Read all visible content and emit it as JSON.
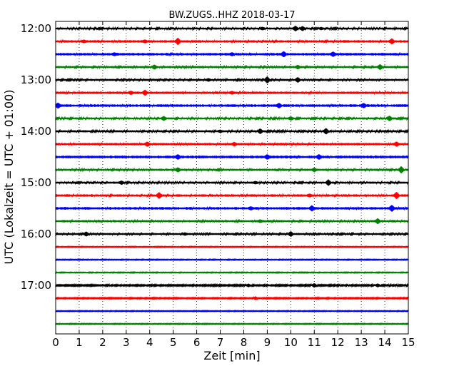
{
  "chart_data": {
    "type": "line",
    "title": "BW.ZUGS..HHZ 2018-03-17",
    "xlabel": "Zeit  [min]",
    "ylabel": "UTC (Lokalzeit = UTC + 01:00)",
    "xlim": [
      0,
      15
    ],
    "x_ticks": [
      "0",
      "1",
      "2",
      "3",
      "4",
      "5",
      "6",
      "7",
      "8",
      "9",
      "10",
      "11",
      "12",
      "13",
      "14",
      "15"
    ],
    "y_tick_labels": [
      "12:00",
      "13:00",
      "14:00",
      "15:00",
      "16:00",
      "17:00"
    ],
    "grid": "vertical dotted",
    "colors": [
      "#000000",
      "#ff0000",
      "#0000ff",
      "#008000"
    ],
    "trace_start_times": [
      "12:00",
      "12:15",
      "12:30",
      "12:45",
      "13:00",
      "13:15",
      "13:30",
      "13:45",
      "14:00",
      "14:15",
      "14:30",
      "14:45",
      "15:00",
      "15:15",
      "15:30",
      "15:45",
      "16:00",
      "16:15",
      "16:30",
      "16:45",
      "17:00",
      "17:15",
      "17:30",
      "17:45"
    ],
    "traces": [
      {
        "noise": 1.0,
        "events": [
          [
            10.2,
            3
          ],
          [
            10.5,
            2.5
          ],
          [
            8.8,
            1.5
          ],
          [
            11.3,
            1.2
          ]
        ]
      },
      {
        "noise": 1.2,
        "events": [
          [
            5.2,
            4
          ],
          [
            14.3,
            3
          ],
          [
            3.8,
            1.5
          ],
          [
            1.2,
            1.4
          ]
        ]
      },
      {
        "noise": 1.3,
        "events": [
          [
            9.7,
            3
          ],
          [
            11.8,
            2.5
          ],
          [
            7.5,
            1.5
          ],
          [
            2.5,
            1.4
          ]
        ]
      },
      {
        "noise": 1.1,
        "events": [
          [
            4.2,
            2.5
          ],
          [
            10.3,
            2
          ],
          [
            13.8,
            3
          ]
        ]
      },
      {
        "noise": 1.0,
        "events": [
          [
            9.0,
            4
          ],
          [
            10.3,
            3
          ],
          [
            6.5,
            1.5
          ]
        ]
      },
      {
        "noise": 1.2,
        "events": [
          [
            3.8,
            3
          ],
          [
            3.2,
            1.8
          ],
          [
            7.5,
            1.4
          ]
        ]
      },
      {
        "noise": 1.3,
        "events": [
          [
            0.1,
            3
          ],
          [
            9.5,
            2.5
          ],
          [
            13.1,
            2.5
          ]
        ]
      },
      {
        "noise": 1.0,
        "events": [
          [
            4.6,
            2.5
          ],
          [
            10.0,
            2
          ],
          [
            14.2,
            3
          ]
        ]
      },
      {
        "noise": 1.0,
        "events": [
          [
            8.7,
            3
          ],
          [
            11.5,
            3.5
          ],
          [
            7.0,
            1.4
          ]
        ]
      },
      {
        "noise": 1.2,
        "events": [
          [
            3.9,
            2.5
          ],
          [
            7.6,
            2
          ],
          [
            14.5,
            2.5
          ]
        ]
      },
      {
        "noise": 1.4,
        "events": [
          [
            5.2,
            2.5
          ],
          [
            9.0,
            2.5
          ],
          [
            11.2,
            2.5
          ]
        ]
      },
      {
        "noise": 1.1,
        "events": [
          [
            5.2,
            2.5
          ],
          [
            11.0,
            2
          ],
          [
            14.7,
            4
          ]
        ]
      },
      {
        "noise": 1.0,
        "events": [
          [
            2.8,
            2
          ],
          [
            11.6,
            3.5
          ],
          [
            8.5,
            1.4
          ]
        ]
      },
      {
        "noise": 1.2,
        "events": [
          [
            4.4,
            3.5
          ],
          [
            14.5,
            4
          ],
          [
            10.8,
            1.5
          ]
        ]
      },
      {
        "noise": 1.3,
        "events": [
          [
            10.9,
            3
          ],
          [
            14.3,
            3.5
          ],
          [
            8.3,
            1.5
          ]
        ]
      },
      {
        "noise": 1.1,
        "events": [
          [
            13.7,
            3
          ],
          [
            8.7,
            1.5
          ]
        ]
      },
      {
        "noise": 1.0,
        "events": [
          [
            1.3,
            2.5
          ],
          [
            10.0,
            3
          ],
          [
            5.5,
            1.4
          ]
        ]
      },
      {
        "noise": 0.4,
        "events": []
      },
      {
        "noise": 0.4,
        "events": []
      },
      {
        "noise": 0.4,
        "events": []
      },
      {
        "noise": 0.7,
        "events": [
          [
            8.2,
            1.8
          ],
          [
            11.0,
            2.5
          ],
          [
            13.7,
            2
          ]
        ]
      },
      {
        "noise": 0.6,
        "events": [
          [
            8.5,
            2
          ]
        ]
      },
      {
        "noise": 0.4,
        "events": []
      },
      {
        "noise": 0.4,
        "events": []
      }
    ]
  }
}
